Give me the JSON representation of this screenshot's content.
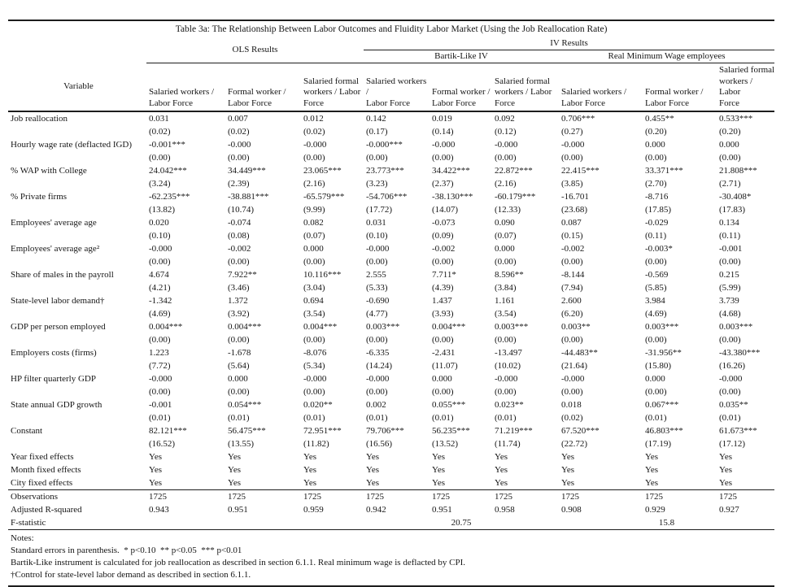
{
  "page": {
    "background_color": "#ffffff",
    "text_color": "#161616",
    "rule_color": "#1d1d1d"
  },
  "table": {
    "title": "Table 3a: The Relationship Between Labor Outcomes and Fluidity Labor Market (Using the Job Reallocation Rate)",
    "variable_header": "Variable",
    "groups": {
      "ols": "OLS Results",
      "iv": "IV Results",
      "bartik": "Bartik-Like IV",
      "rmw": "Real Minimum Wage employees"
    },
    "col_headers": [
      "Salaried workers /\nLabor Force",
      "Formal worker /\nLabor Force",
      "Salaried formal\nworkers / Labor\nForce",
      "Salaried workers /\nLabor Force",
      "Formal worker /\nLabor Force",
      "Salaried formal\nworkers / Labor\nForce",
      "Salaried workers /\nLabor Force",
      "Formal worker /\nLabor Force",
      "Salaried formal\nworkers / Labor\nForce"
    ],
    "rows": [
      {
        "label": "Job reallocation",
        "coef": [
          "0.031",
          "0.007",
          "0.012",
          "0.142",
          "0.019",
          "0.092",
          "0.706***",
          "0.455**",
          "0.533***"
        ],
        "se": [
          "(0.02)",
          "(0.02)",
          "(0.02)",
          "(0.17)",
          "(0.14)",
          "(0.12)",
          "(0.27)",
          "(0.20)",
          "(0.20)"
        ]
      },
      {
        "label": "Hourly wage rate (deflacted IGD)",
        "coef": [
          "-0.001***",
          "-0.000",
          "-0.000",
          "-0.000***",
          "-0.000",
          "-0.000",
          "-0.000",
          "0.000",
          "0.000"
        ],
        "se": [
          "(0.00)",
          "(0.00)",
          "(0.00)",
          "(0.00)",
          "(0.00)",
          "(0.00)",
          "(0.00)",
          "(0.00)",
          "(0.00)"
        ]
      },
      {
        "label": "% WAP with College",
        "coef": [
          "24.042***",
          "34.449***",
          "23.065***",
          "23.773***",
          "34.422***",
          "22.872***",
          "22.415***",
          "33.371***",
          "21.808***"
        ],
        "se": [
          "(3.24)",
          "(2.39)",
          "(2.16)",
          "(3.23)",
          "(2.37)",
          "(2.16)",
          "(3.85)",
          "(2.70)",
          "(2.71)"
        ]
      },
      {
        "label": "% Private firms",
        "coef": [
          "-62.235***",
          "-38.881***",
          "-65.579***",
          "-54.706***",
          "-38.130***",
          "-60.179***",
          "-16.701",
          "-8.716",
          "-30.408*"
        ],
        "se": [
          "(13.82)",
          "(10.74)",
          "(9.99)",
          "(17.72)",
          "(14.07)",
          "(12.33)",
          "(23.68)",
          "(17.85)",
          "(17.83)"
        ]
      },
      {
        "label": "Employees' average age",
        "coef": [
          "0.020",
          "-0.074",
          "0.082",
          "0.031",
          "-0.073",
          "0.090",
          "0.087",
          "-0.029",
          "0.134"
        ],
        "se": [
          "(0.10)",
          "(0.08)",
          "(0.07)",
          "(0.10)",
          "(0.09)",
          "(0.07)",
          "(0.15)",
          "(0.11)",
          "(0.11)"
        ]
      },
      {
        "label": "Employees' average age²",
        "coef": [
          "-0.000",
          "-0.002",
          "0.000",
          "-0.000",
          "-0.002",
          "0.000",
          "-0.002",
          "-0.003*",
          "-0.001"
        ],
        "se": [
          "(0.00)",
          "(0.00)",
          "(0.00)",
          "(0.00)",
          "(0.00)",
          "(0.00)",
          "(0.00)",
          "(0.00)",
          "(0.00)"
        ]
      },
      {
        "label": "Share of males in the payroll",
        "coef": [
          "4.674",
          "7.922**",
          "10.116***",
          "2.555",
          "7.711*",
          "8.596**",
          "-8.144",
          "-0.569",
          "0.215"
        ],
        "se": [
          "(4.21)",
          "(3.46)",
          "(3.04)",
          "(5.33)",
          "(4.39)",
          "(3.84)",
          "(7.94)",
          "(5.85)",
          "(5.99)"
        ]
      },
      {
        "label": "State-level labor demand†",
        "coef": [
          "-1.342",
          "1.372",
          "0.694",
          "-0.690",
          "1.437",
          "1.161",
          "2.600",
          "3.984",
          "3.739"
        ],
        "se": [
          "(4.69)",
          "(3.92)",
          "(3.54)",
          "(4.77)",
          "(3.93)",
          "(3.54)",
          "(6.20)",
          "(4.69)",
          "(4.68)"
        ]
      },
      {
        "label": "GDP per person employed",
        "coef": [
          "0.004***",
          "0.004***",
          "0.004***",
          "0.003***",
          "0.004***",
          "0.003***",
          "0.003**",
          "0.003***",
          "0.003***"
        ],
        "se": [
          "(0.00)",
          "(0.00)",
          "(0.00)",
          "(0.00)",
          "(0.00)",
          "(0.00)",
          "(0.00)",
          "(0.00)",
          "(0.00)"
        ]
      },
      {
        "label": "Employers costs (firms)",
        "coef": [
          "1.223",
          "-1.678",
          "-8.076",
          "-6.335",
          "-2.431",
          "-13.497",
          "-44.483**",
          "-31.956**",
          "-43.380***"
        ],
        "se": [
          "(7.72)",
          "(5.64)",
          "(5.34)",
          "(14.24)",
          "(11.07)",
          "(10.02)",
          "(21.64)",
          "(15.80)",
          "(16.26)"
        ]
      },
      {
        "label": "HP filter quarterly GDP",
        "coef": [
          "-0.000",
          "0.000",
          "-0.000",
          "-0.000",
          "0.000",
          "-0.000",
          "-0.000",
          "0.000",
          "-0.000"
        ],
        "se": [
          "(0.00)",
          "(0.00)",
          "(0.00)",
          "(0.00)",
          "(0.00)",
          "(0.00)",
          "(0.00)",
          "(0.00)",
          "(0.00)"
        ]
      },
      {
        "label": "State annual GDP growth",
        "coef": [
          "-0.001",
          "0.054***",
          "0.020**",
          "0.002",
          "0.055***",
          "0.023**",
          "0.018",
          "0.067***",
          "0.035**"
        ],
        "se": [
          "(0.01)",
          "(0.01)",
          "(0.01)",
          "(0.01)",
          "(0.01)",
          "(0.01)",
          "(0.02)",
          "(0.01)",
          "(0.01)"
        ]
      },
      {
        "label": "Constant",
        "coef": [
          "82.121***",
          "56.475***",
          "72.951***",
          "79.706***",
          "56.235***",
          "71.219***",
          "67.520***",
          "46.803***",
          "61.673***"
        ],
        "se": [
          "(16.52)",
          "(13.55)",
          "(11.82)",
          "(16.56)",
          "(13.52)",
          "(11.74)",
          "(22.72)",
          "(17.19)",
          "(17.12)"
        ]
      }
    ],
    "fixed_effects": [
      {
        "label": "Year fixed effects",
        "values": [
          "Yes",
          "Yes",
          "Yes",
          "Yes",
          "Yes",
          "Yes",
          "Yes",
          "Yes",
          "Yes"
        ]
      },
      {
        "label": "Month fixed effects",
        "values": [
          "Yes",
          "Yes",
          "Yes",
          "Yes",
          "Yes",
          "Yes",
          "Yes",
          "Yes",
          "Yes"
        ]
      },
      {
        "label": "City fixed effects",
        "values": [
          "Yes",
          "Yes",
          "Yes",
          "Yes",
          "Yes",
          "Yes",
          "Yes",
          "Yes",
          "Yes"
        ]
      }
    ],
    "stats": [
      {
        "label": "Observations",
        "values": [
          "1725",
          "1725",
          "1725",
          "1725",
          "1725",
          "1725",
          "1725",
          "1725",
          "1725"
        ]
      },
      {
        "label": "Adjusted R-squared",
        "values": [
          "0.943",
          "0.951",
          "0.959",
          "0.942",
          "0.951",
          "0.958",
          "0.908",
          "0.929",
          "0.927"
        ]
      }
    ],
    "f_statistic": {
      "label": "F-statistic",
      "bartik_value": "20.75",
      "rmw_value": "15.8"
    },
    "notes": {
      "heading": "Notes:",
      "lines": [
        "Standard errors in parenthesis.  * p<0.10  ** p<0.05  *** p<0.01",
        "Bartik-Like instrument is calculated for job reallocation as described in section 6.1.1. Real minimum wage is deflacted by CPI.",
        "†Control for state-level labor demand as described in section 6.1.1."
      ]
    }
  }
}
